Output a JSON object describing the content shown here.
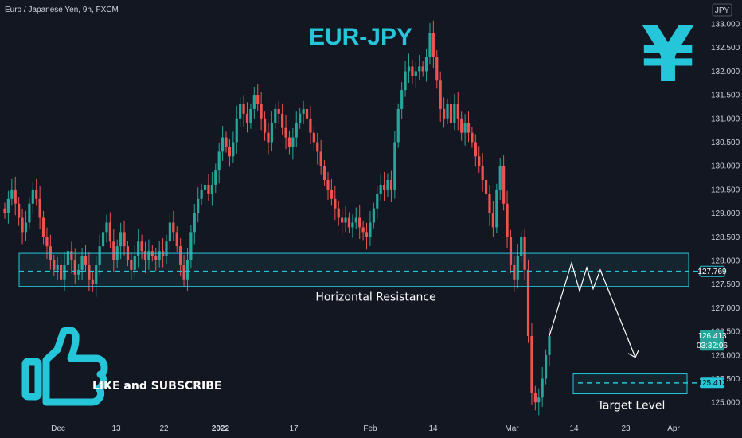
{
  "header": {
    "symbol": "Euro / Japanese Yen, 9h, FXCM",
    "currency": "JPY"
  },
  "annotations": {
    "title": "EUR-JPY",
    "currency_glyph": "¥",
    "resistance_label": "Horizontal Resistance",
    "target_label": "Target Level",
    "cta": "LIKE and SUBSCRIBE"
  },
  "colors": {
    "up": "#26a69a",
    "down": "#ef5350",
    "accent": "#26c6da",
    "background": "#131722"
  },
  "chart_data": {
    "type": "candlestick",
    "title": "EUR-JPY",
    "ylim": [
      124.75,
      133.15
    ],
    "y_ticks": [
      "125.000",
      "125.500",
      "126.000",
      "126.500",
      "127.000",
      "127.500",
      "128.000",
      "128.500",
      "129.000",
      "129.500",
      "130.000",
      "130.500",
      "131.000",
      "131.500",
      "132.000",
      "132.500",
      "133.000"
    ],
    "x_ticks": [
      "Dec",
      "13",
      "22",
      "2022",
      "17",
      "Feb",
      "14",
      "Mar",
      "14",
      "23",
      "Apr"
    ],
    "price_labels": {
      "last_price": "126.413",
      "countdown": "03:32:06",
      "resistance_price": "127.769",
      "target_price": "125.412"
    },
    "levels": {
      "resistance_line": 127.77,
      "resistance_zone": [
        127.45,
        128.15
      ],
      "target_line": 125.41,
      "target_zone": [
        125.18,
        125.6
      ]
    },
    "closes": [
      129.0,
      129.3,
      129.5,
      129.2,
      128.9,
      128.6,
      128.8,
      129.2,
      129.5,
      129.3,
      128.9,
      128.5,
      128.3,
      128.0,
      127.8,
      127.9,
      127.6,
      127.9,
      128.2,
      128.0,
      127.7,
      127.8,
      128.1,
      127.9,
      127.6,
      127.5,
      127.9,
      128.3,
      128.6,
      128.8,
      128.4,
      128.0,
      128.3,
      128.6,
      128.3,
      128.0,
      127.8,
      128.1,
      128.4,
      128.2,
      128.0,
      128.2,
      128.1,
      128.0,
      128.2,
      128.1,
      128.4,
      128.8,
      128.6,
      128.3,
      127.9,
      127.6,
      128.0,
      128.6,
      129.0,
      129.3,
      129.5,
      129.6,
      129.4,
      129.6,
      129.9,
      130.3,
      130.6,
      130.4,
      130.2,
      130.5,
      131.0,
      131.3,
      131.1,
      130.9,
      131.2,
      131.5,
      131.3,
      131.0,
      130.7,
      130.5,
      130.9,
      131.2,
      131.1,
      130.8,
      130.6,
      130.4,
      130.6,
      130.9,
      131.1,
      131.2,
      131.0,
      130.7,
      130.5,
      130.3,
      130.0,
      129.7,
      129.5,
      129.3,
      129.1,
      128.9,
      128.8,
      128.9,
      128.7,
      128.8,
      128.9,
      128.7,
      128.6,
      128.5,
      128.8,
      129.1,
      129.4,
      129.6,
      129.5,
      129.7,
      129.5,
      130.5,
      131.2,
      131.6,
      132.0,
      132.1,
      131.9,
      132.0,
      132.1,
      132.0,
      132.3,
      132.8,
      132.3,
      131.8,
      131.2,
      131.0,
      131.3,
      130.9,
      131.3,
      131.0,
      130.7,
      130.9,
      130.7,
      130.5,
      130.2,
      130.0,
      129.7,
      129.4,
      129.0,
      128.7,
      129.5,
      130.0,
      129.2,
      128.5,
      127.9,
      127.6,
      128.1,
      128.5,
      127.8,
      126.4,
      125.2,
      125.0,
      125.1,
      125.5,
      126.0,
      126.4
    ]
  }
}
